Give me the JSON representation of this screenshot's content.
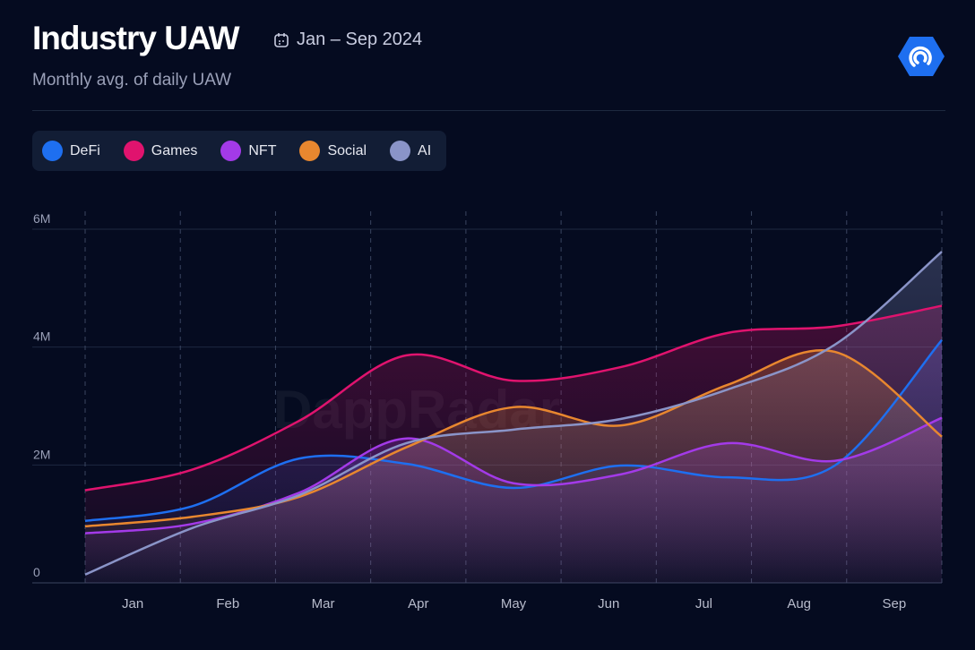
{
  "header": {
    "title": "Industry UAW",
    "date_range": "Jan – Sep 2024",
    "subtitle": "Monthly avg. of daily UAW",
    "date_icon": "calendar-icon",
    "logo_icon": "dappradar-logo-icon"
  },
  "watermark": "DappRadar",
  "chart_data": {
    "type": "area",
    "title": "Industry UAW",
    "subtitle": "Monthly avg. of daily UAW",
    "categories": [
      "Jan",
      "Feb",
      "Mar",
      "Apr",
      "May",
      "Jun",
      "Jul",
      "Aug",
      "Sep"
    ],
    "y_ticks": [
      "0",
      "2M",
      "4M",
      "6M"
    ],
    "ylim": [
      0,
      6000000
    ],
    "grid": "horizontal solid, vertical dashed",
    "legend": "top-left",
    "series": [
      {
        "name": "DeFi",
        "color": "#1e6ff0",
        "values": [
          1050000,
          1300000,
          2110000,
          2020000,
          1610000,
          1990000,
          1790000,
          1990000,
          4120000
        ]
      },
      {
        "name": "Games",
        "color": "#e0136e",
        "values": [
          1570000,
          1920000,
          2750000,
          3860000,
          3430000,
          3660000,
          4240000,
          4350000,
          4700000
        ]
      },
      {
        "name": "NFT",
        "color": "#a33ae8",
        "values": [
          840000,
          1000000,
          1530000,
          2450000,
          1690000,
          1840000,
          2370000,
          2070000,
          2800000
        ]
      },
      {
        "name": "Social",
        "color": "#e8872f",
        "values": [
          960000,
          1120000,
          1460000,
          2300000,
          2980000,
          2670000,
          3360000,
          3920000,
          2480000
        ]
      },
      {
        "name": "AI",
        "color": "#8a94c8",
        "values": [
          140000,
          930000,
          1490000,
          2370000,
          2600000,
          2780000,
          3280000,
          4040000,
          5620000
        ]
      }
    ]
  }
}
